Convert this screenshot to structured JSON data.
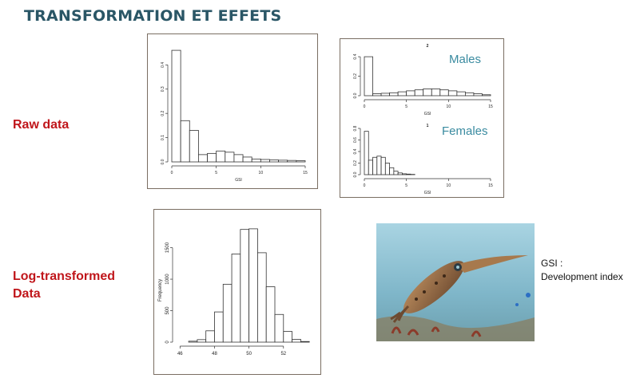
{
  "slide": {
    "title": "TRANSFORMATION ET EFFETS",
    "raw_label": "Raw data",
    "log_label_line1": "Log-transformed",
    "log_label_line2": "Data",
    "males_label": "Males",
    "females_label": "Females",
    "gsi_note_line1": "GSI :",
    "gsi_note_line2": "Development index",
    "colors": {
      "title": "#2a5666",
      "labels": "#c0161b",
      "overlay": "#3a8ba0"
    }
  },
  "chart_data": [
    {
      "id": "raw",
      "type": "bar",
      "title": "",
      "xlabel": "GSI",
      "ylabel": "",
      "bin_width": 1,
      "bin_start": 0,
      "values": [
        0.46,
        0.17,
        0.13,
        0.03,
        0.035,
        0.045,
        0.04,
        0.03,
        0.02,
        0.012,
        0.01,
        0.008,
        0.007,
        0.006,
        0.005
      ],
      "xlim": [
        0,
        15
      ],
      "ylim": [
        0,
        0.48
      ],
      "xticks": [
        "0",
        "5",
        "10",
        "15"
      ],
      "yticks": [
        "0.0",
        "0.1",
        "0.2",
        "0.3",
        "0.4"
      ]
    },
    {
      "id": "males",
      "type": "bar",
      "title": "2",
      "xlabel": "GSI",
      "ylabel": "",
      "bin_width": 1,
      "bin_start": 0,
      "values": [
        0.4,
        0.02,
        0.025,
        0.03,
        0.04,
        0.05,
        0.06,
        0.07,
        0.07,
        0.06,
        0.05,
        0.04,
        0.03,
        0.02,
        0.01
      ],
      "xlim": [
        0,
        15
      ],
      "ylim": [
        0,
        0.45
      ],
      "xticks": [
        "0",
        "5",
        "10",
        "15"
      ],
      "yticks": [
        "0.0",
        "0.2",
        "0.4"
      ]
    },
    {
      "id": "females",
      "type": "bar",
      "title": "1",
      "xlabel": "GSI",
      "ylabel": "",
      "bin_width": 0.5,
      "bin_start": 0,
      "values": [
        0.75,
        0.25,
        0.3,
        0.32,
        0.3,
        0.2,
        0.12,
        0.06,
        0.03,
        0.015,
        0.01,
        0.005
      ],
      "xlim": [
        0,
        15
      ],
      "ylim": [
        0,
        0.8
      ],
      "xticks": [
        "0",
        "5",
        "10",
        "15"
      ],
      "yticks": [
        "0.0",
        "0.2",
        "0.4",
        "0.6",
        "0.8"
      ]
    },
    {
      "id": "log",
      "type": "bar",
      "title": "",
      "xlabel": "",
      "ylabel": "Frequency",
      "bin_width": 0.5,
      "bin_start": 46.5,
      "values": [
        15,
        40,
        180,
        480,
        920,
        1400,
        1790,
        1800,
        1420,
        880,
        440,
        170,
        45,
        10
      ],
      "xlim": [
        45.8,
        53.4
      ],
      "ylim": [
        0,
        1900
      ],
      "xticks": [
        "46",
        "48",
        "50",
        "52"
      ],
      "yticks": [
        "0",
        "500",
        "1000",
        "1500"
      ]
    }
  ]
}
